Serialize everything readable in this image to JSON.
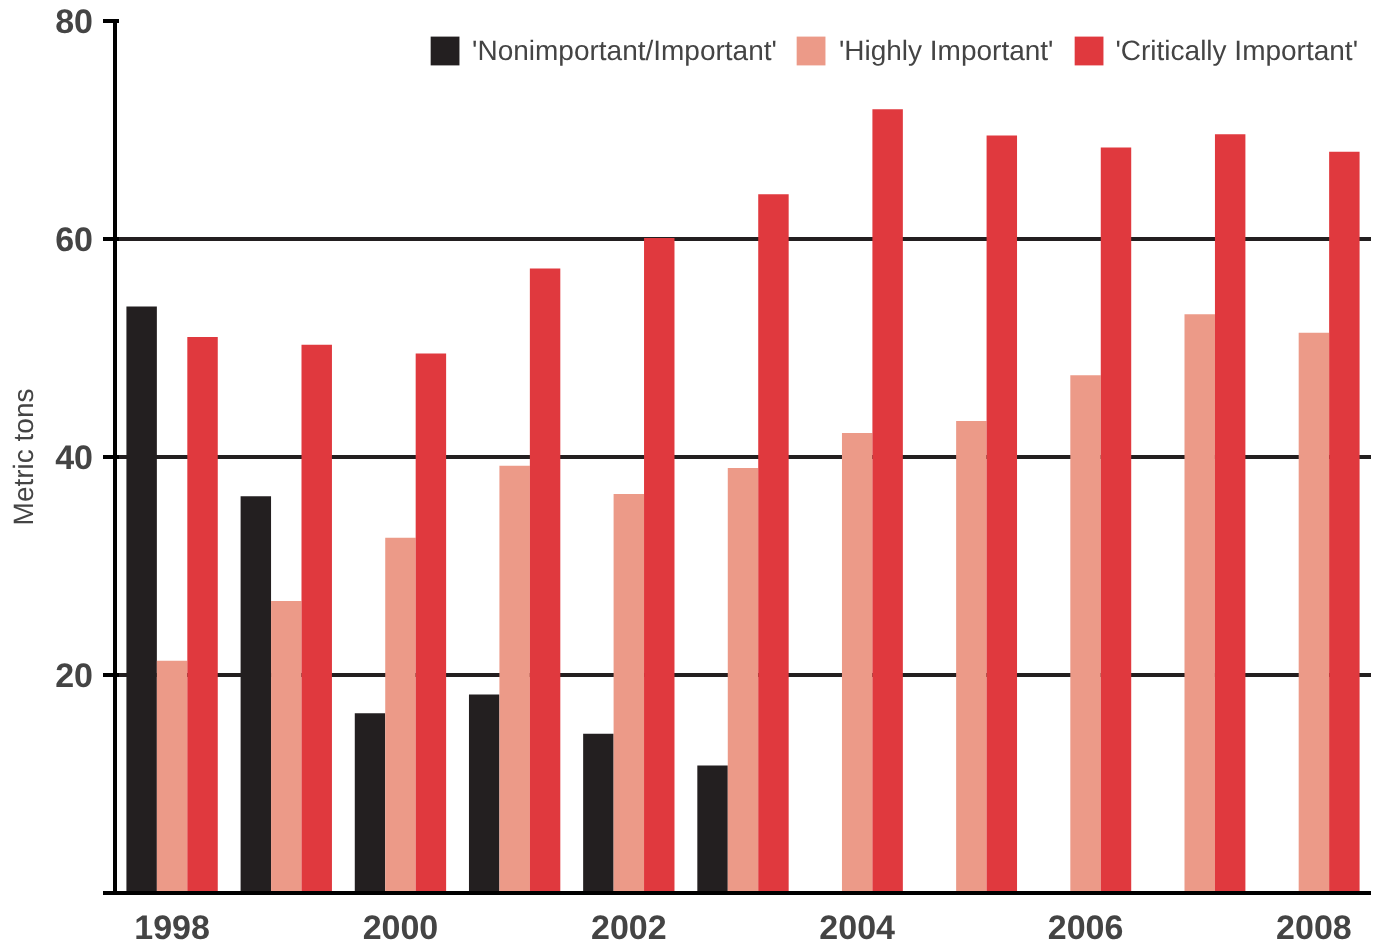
{
  "chart_data": {
    "type": "bar",
    "ylabel": "Metric tons",
    "categories": [
      "1998",
      null,
      "2000",
      null,
      "2002",
      null,
      "2004",
      null,
      "2006",
      null,
      "2008"
    ],
    "series": [
      {
        "name": "'Nonimportant/Important'",
        "color": "#231f20",
        "values": [
          53.8,
          36.4,
          16.5,
          18.2,
          14.6,
          11.7,
          null,
          null,
          null,
          null,
          null
        ]
      },
      {
        "name": "'Highly Important'",
        "color": "#ec9a88",
        "values": [
          21.3,
          26.8,
          32.6,
          39.2,
          36.6,
          39.0,
          42.2,
          43.3,
          47.5,
          53.1,
          51.4
        ]
      },
      {
        "name": "'Critically Important'",
        "color": "#e0393e",
        "values": [
          51.0,
          50.3,
          49.5,
          57.3,
          60.1,
          64.1,
          71.9,
          69.5,
          68.4,
          69.6,
          68.0
        ]
      }
    ],
    "ylim": [
      0,
      80
    ],
    "yticks": [
      {
        "value": 0,
        "label": null
      },
      20,
      40,
      60,
      80
    ],
    "grid": "y",
    "legend": "top right"
  }
}
